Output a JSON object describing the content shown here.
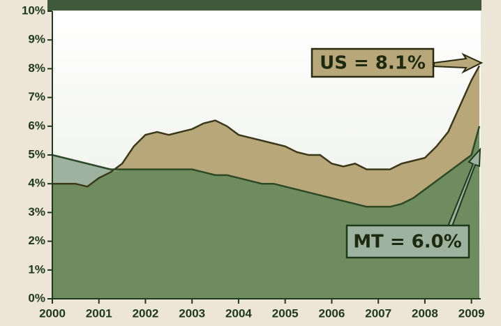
{
  "chart_data": {
    "type": "area",
    "x": [
      2000,
      2000.25,
      2000.5,
      2000.75,
      2001,
      2001.25,
      2001.5,
      2001.75,
      2002,
      2002.25,
      2002.5,
      2002.75,
      2003,
      2003.25,
      2003.5,
      2003.75,
      2004,
      2004.25,
      2004.5,
      2004.75,
      2005,
      2005.25,
      2005.5,
      2005.75,
      2006,
      2006.25,
      2006.5,
      2006.75,
      2007,
      2007.25,
      2007.5,
      2007.75,
      2008,
      2008.25,
      2008.5,
      2008.75,
      2009,
      2009.17
    ],
    "series": [
      {
        "name": "US",
        "color": "#b8a778",
        "line_color": "#3b3a18",
        "values": [
          4.0,
          4.0,
          4.0,
          3.9,
          4.2,
          4.4,
          4.7,
          5.3,
          5.7,
          5.8,
          5.7,
          5.8,
          5.9,
          6.1,
          6.2,
          6.0,
          5.7,
          5.6,
          5.5,
          5.4,
          5.3,
          5.1,
          5.0,
          5.0,
          4.7,
          4.6,
          4.7,
          4.5,
          4.5,
          4.5,
          4.7,
          4.8,
          4.9,
          5.3,
          5.8,
          6.7,
          7.6,
          8.1
        ]
      },
      {
        "name": "MT",
        "color": "#9db3a0",
        "line_color": "#2c4a26",
        "values": [
          5.0,
          4.9,
          4.8,
          4.7,
          4.6,
          4.5,
          4.5,
          4.5,
          4.5,
          4.5,
          4.5,
          4.5,
          4.5,
          4.4,
          4.3,
          4.3,
          4.2,
          4.1,
          4.0,
          4.0,
          3.9,
          3.8,
          3.7,
          3.6,
          3.5,
          3.4,
          3.3,
          3.2,
          3.2,
          3.2,
          3.3,
          3.5,
          3.8,
          4.1,
          4.4,
          4.7,
          5.0,
          6.0
        ]
      }
    ],
    "overlap_color": "#6f8c5f",
    "xlim": [
      2000,
      2009.2
    ],
    "xticks": [
      2000,
      2001,
      2002,
      2003,
      2004,
      2005,
      2006,
      2007,
      2008,
      2009
    ],
    "ylim": [
      0,
      10
    ],
    "yticks": [
      {
        "value": 0,
        "label": "0%"
      },
      {
        "value": 1,
        "label": "1%"
      },
      {
        "value": 2,
        "label": "2%"
      },
      {
        "value": 3,
        "label": "3%"
      },
      {
        "value": 4,
        "label": "4%"
      },
      {
        "value": 5,
        "label": "5%"
      },
      {
        "value": 6,
        "label": "6%"
      },
      {
        "value": 7,
        "label": "7%"
      },
      {
        "value": 8,
        "label": "8%"
      },
      {
        "value": 9,
        "label": "9%"
      },
      {
        "value": 10,
        "label": "10%"
      }
    ],
    "annotations": [
      "US = 8.1%",
      "MT = 6.0%"
    ]
  }
}
